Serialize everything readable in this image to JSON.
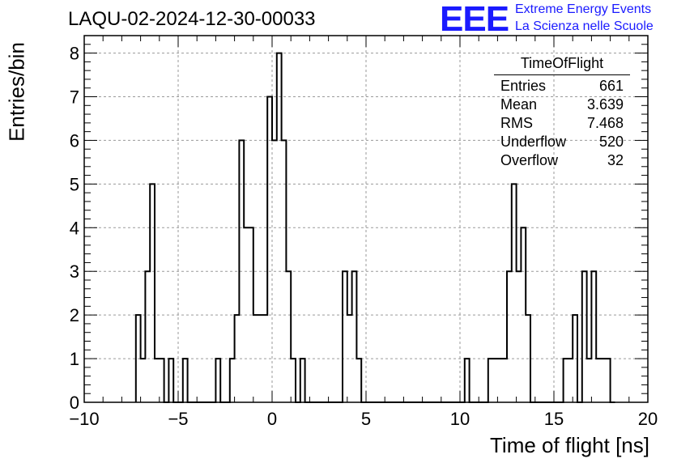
{
  "title": "LAQU-02-2024-12-30-00033",
  "logo": {
    "mark": "EEE",
    "line1": "Extreme Energy Events",
    "line2": "La Scienza nelle Scuole",
    "color": "#1a1aff"
  },
  "stats": {
    "name": "TimeOfFlight",
    "rows": [
      {
        "label": "Entries",
        "value": "661"
      },
      {
        "label": "Mean",
        "value": "3.639"
      },
      {
        "label": "RMS",
        "value": "7.468"
      },
      {
        "label": "Underflow",
        "value": "520"
      },
      {
        "label": "Overflow",
        "value": "32"
      }
    ]
  },
  "chart_data": {
    "type": "histogram",
    "title": "LAQU-02-2024-12-30-00033",
    "xlabel": "Time of flight [ns]",
    "ylabel": "Entries/bin",
    "xlim": [
      -10,
      20
    ],
    "ylim": [
      0,
      8.4
    ],
    "grid": true,
    "x_ticks": [
      "−10",
      "−5",
      "0",
      "5",
      "10",
      "15",
      "20"
    ],
    "y_ticks": [
      "0",
      "1",
      "2",
      "3",
      "4",
      "5",
      "6",
      "7",
      "8"
    ],
    "bin_width": 0.25,
    "bins": [
      {
        "x": -7.25,
        "y": 2
      },
      {
        "x": -7.0,
        "y": 1
      },
      {
        "x": -6.75,
        "y": 3
      },
      {
        "x": -6.5,
        "y": 5
      },
      {
        "x": -6.25,
        "y": 1
      },
      {
        "x": -6.0,
        "y": 1
      },
      {
        "x": -5.75,
        "y": 0
      },
      {
        "x": -5.5,
        "y": 1
      },
      {
        "x": -5.25,
        "y": 0
      },
      {
        "x": -5.0,
        "y": 0
      },
      {
        "x": -4.75,
        "y": 1
      },
      {
        "x": -4.5,
        "y": 0
      },
      {
        "x": -4.25,
        "y": 0
      },
      {
        "x": -4.0,
        "y": 0
      },
      {
        "x": -3.75,
        "y": 0
      },
      {
        "x": -3.5,
        "y": 0
      },
      {
        "x": -3.25,
        "y": 0
      },
      {
        "x": -3.0,
        "y": 1
      },
      {
        "x": -2.75,
        "y": 0
      },
      {
        "x": -2.5,
        "y": 0
      },
      {
        "x": -2.25,
        "y": 1
      },
      {
        "x": -2.0,
        "y": 2
      },
      {
        "x": -1.75,
        "y": 6
      },
      {
        "x": -1.5,
        "y": 4
      },
      {
        "x": -1.25,
        "y": 4
      },
      {
        "x": -1.0,
        "y": 2
      },
      {
        "x": -0.75,
        "y": 2
      },
      {
        "x": -0.5,
        "y": 2
      },
      {
        "x": -0.25,
        "y": 7
      },
      {
        "x": 0.0,
        "y": 6
      },
      {
        "x": 0.25,
        "y": 8
      },
      {
        "x": 0.5,
        "y": 6
      },
      {
        "x": 0.75,
        "y": 3
      },
      {
        "x": 1.0,
        "y": 1
      },
      {
        "x": 1.25,
        "y": 0
      },
      {
        "x": 1.5,
        "y": 1
      },
      {
        "x": 1.75,
        "y": 0
      },
      {
        "x": 2.0,
        "y": 0
      },
      {
        "x": 2.25,
        "y": 0
      },
      {
        "x": 2.5,
        "y": 0
      },
      {
        "x": 2.75,
        "y": 0
      },
      {
        "x": 3.0,
        "y": 0
      },
      {
        "x": 3.25,
        "y": 0
      },
      {
        "x": 3.5,
        "y": 0
      },
      {
        "x": 3.75,
        "y": 3
      },
      {
        "x": 4.0,
        "y": 2
      },
      {
        "x": 4.25,
        "y": 3
      },
      {
        "x": 4.5,
        "y": 1
      },
      {
        "x": 4.75,
        "y": 0
      },
      {
        "x": 5.0,
        "y": 0
      },
      {
        "x": 5.25,
        "y": 0
      },
      {
        "x": 5.5,
        "y": 0
      },
      {
        "x": 5.75,
        "y": 0
      },
      {
        "x": 6.0,
        "y": 0
      },
      {
        "x": 6.25,
        "y": 0
      },
      {
        "x": 6.5,
        "y": 0
      },
      {
        "x": 6.75,
        "y": 0
      },
      {
        "x": 7.0,
        "y": 0
      },
      {
        "x": 7.25,
        "y": 0
      },
      {
        "x": 7.5,
        "y": 0
      },
      {
        "x": 7.75,
        "y": 0
      },
      {
        "x": 8.0,
        "y": 0
      },
      {
        "x": 8.25,
        "y": 0
      },
      {
        "x": 8.5,
        "y": 0
      },
      {
        "x": 8.75,
        "y": 0
      },
      {
        "x": 9.0,
        "y": 0
      },
      {
        "x": 9.25,
        "y": 0
      },
      {
        "x": 9.5,
        "y": 0
      },
      {
        "x": 9.75,
        "y": 0
      },
      {
        "x": 10.0,
        "y": 0
      },
      {
        "x": 10.25,
        "y": 1
      },
      {
        "x": 10.5,
        "y": 0
      },
      {
        "x": 10.75,
        "y": 0
      },
      {
        "x": 11.0,
        "y": 0
      },
      {
        "x": 11.25,
        "y": 0
      },
      {
        "x": 11.5,
        "y": 1
      },
      {
        "x": 11.75,
        "y": 1
      },
      {
        "x": 12.0,
        "y": 1
      },
      {
        "x": 12.25,
        "y": 1
      },
      {
        "x": 12.5,
        "y": 3
      },
      {
        "x": 12.75,
        "y": 5
      },
      {
        "x": 13.0,
        "y": 3
      },
      {
        "x": 13.25,
        "y": 4
      },
      {
        "x": 13.5,
        "y": 2
      },
      {
        "x": 13.75,
        "y": 0
      },
      {
        "x": 14.0,
        "y": 0
      },
      {
        "x": 14.25,
        "y": 0
      },
      {
        "x": 14.5,
        "y": 0
      },
      {
        "x": 14.75,
        "y": 0
      },
      {
        "x": 15.0,
        "y": 0
      },
      {
        "x": 15.25,
        "y": 0
      },
      {
        "x": 15.5,
        "y": 1
      },
      {
        "x": 15.75,
        "y": 1
      },
      {
        "x": 16.0,
        "y": 2
      },
      {
        "x": 16.25,
        "y": 0
      },
      {
        "x": 16.5,
        "y": 3
      },
      {
        "x": 16.75,
        "y": 1
      },
      {
        "x": 17.0,
        "y": 3
      },
      {
        "x": 17.25,
        "y": 1
      },
      {
        "x": 17.5,
        "y": 1
      },
      {
        "x": 17.75,
        "y": 1
      },
      {
        "x": 18.0,
        "y": 0
      }
    ]
  }
}
